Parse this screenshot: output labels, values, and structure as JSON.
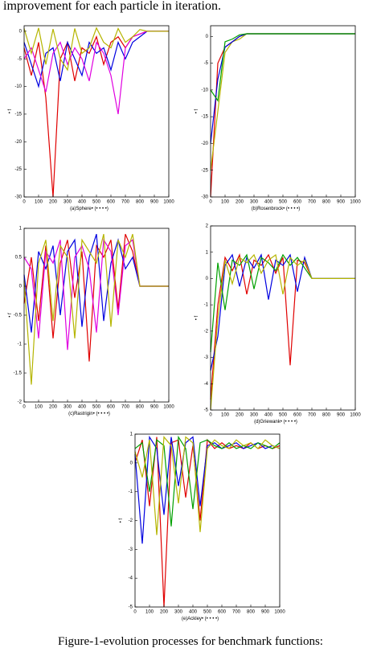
{
  "header_text": "improvement for each particle in iteration.",
  "caption": "Figure-1-evolution processes for benchmark functions:",
  "chart_data": [
    {
      "type": "line",
      "xlabel": "(a)Sphere• (• • • •)",
      "ylabel": "• f",
      "x": [
        0,
        50,
        100,
        150,
        200,
        250,
        300,
        350,
        400,
        450,
        500,
        550,
        600,
        650,
        700,
        750,
        800,
        850,
        900,
        950,
        1000
      ],
      "xlim": [
        0,
        1000
      ],
      "ylim": [
        -30,
        1
      ],
      "xticks": [
        0,
        100,
        200,
        300,
        400,
        500,
        600,
        700,
        800,
        900,
        1000
      ],
      "yticks": [
        0,
        -5,
        -10,
        -15,
        -20,
        -25,
        -30
      ],
      "series": [
        {
          "color": "#e00000",
          "values": [
            -3,
            -8,
            -2,
            -12,
            -30,
            -5,
            -2,
            -9,
            -3,
            -4,
            -1,
            -6,
            -2,
            -1,
            -3,
            -1,
            -0.5,
            0,
            0,
            0,
            0
          ]
        },
        {
          "color": "#0000e0",
          "values": [
            -2,
            -6,
            -10,
            -4,
            -3,
            -9,
            -2,
            -5,
            -8,
            -2,
            -4,
            -3,
            -7,
            -2,
            -5,
            -2,
            -1,
            0,
            0,
            0,
            0
          ]
        },
        {
          "color": "#e000e0",
          "values": [
            -5,
            -3,
            -7,
            -11,
            -4,
            -2,
            -6,
            -3,
            -5,
            -9,
            -2,
            -4,
            -8,
            -15,
            -3,
            -1,
            -0.5,
            0,
            0,
            0,
            0
          ]
        },
        {
          "color": "#b5b500",
          "values": [
            0.5,
            -4,
            0.6,
            -6,
            0.4,
            -5,
            -7,
            0.5,
            -4,
            -3,
            0.6,
            -2,
            -3,
            0.5,
            -2,
            -1,
            0.3,
            0,
            0,
            0,
            0
          ]
        }
      ]
    },
    {
      "type": "line",
      "xlabel": "(b)Rosenbrock• (• • • •)",
      "ylabel": "• f",
      "x": [
        0,
        50,
        100,
        150,
        200,
        250,
        300,
        350,
        400,
        450,
        500,
        550,
        600,
        650,
        700,
        750,
        800,
        850,
        900,
        950,
        1000
      ],
      "xlim": [
        0,
        1000
      ],
      "ylim": [
        -30,
        2
      ],
      "xticks": [
        0,
        100,
        200,
        300,
        400,
        500,
        600,
        700,
        800,
        900,
        1000
      ],
      "yticks": [
        0,
        -5,
        -10,
        -15,
        -20,
        -25,
        -30
      ],
      "series": [
        {
          "color": "#e00000",
          "values": [
            -30,
            -5,
            -2,
            -1,
            0,
            0.5,
            0.5,
            0.5,
            0.5,
            0.5,
            0.5,
            0.5,
            0.5,
            0.5,
            0.5,
            0.5,
            0.5,
            0.5,
            0.5,
            0.5,
            0.5
          ]
        },
        {
          "color": "#b5b500",
          "values": [
            -25,
            -14,
            -3,
            -1,
            -0.5,
            0.5,
            0.5,
            0.5,
            0.5,
            0.5,
            0.5,
            0.5,
            0.5,
            0.5,
            0.5,
            0.5,
            0.5,
            0.5,
            0.5,
            0.5,
            0.5
          ]
        },
        {
          "color": "#0000e0",
          "values": [
            -20,
            -8,
            -2,
            -1,
            0,
            0.5,
            0.5,
            0.5,
            0.5,
            0.5,
            0.5,
            0.5,
            0.5,
            0.5,
            0.5,
            0.5,
            0.5,
            0.5,
            0.5,
            0.5,
            0.5
          ]
        },
        {
          "color": "#00a000",
          "values": [
            -10,
            -12,
            -1,
            -0.5,
            0.3,
            0.5,
            0.5,
            0.5,
            0.5,
            0.5,
            0.5,
            0.5,
            0.5,
            0.5,
            0.5,
            0.5,
            0.5,
            0.5,
            0.5,
            0.5,
            0.5
          ]
        }
      ]
    },
    {
      "type": "line",
      "xlabel": "(c)Rastrigin• (• • • •)",
      "ylabel": "• f",
      "x": [
        0,
        50,
        100,
        150,
        200,
        250,
        300,
        350,
        400,
        450,
        500,
        550,
        600,
        650,
        700,
        750,
        800,
        850,
        900,
        950,
        1000
      ],
      "xlim": [
        0,
        1000
      ],
      "ylim": [
        -2,
        1
      ],
      "xticks": [
        0,
        100,
        200,
        300,
        400,
        500,
        600,
        700,
        800,
        900,
        1000
      ],
      "yticks": [
        1,
        0.5,
        0,
        -0.5,
        -1,
        -1.5,
        -2
      ],
      "series": [
        {
          "color": "#e00000",
          "values": [
            -0.3,
            0.5,
            -0.6,
            0.7,
            -0.9,
            0.4,
            0.8,
            -0.2,
            0.6,
            -1.3,
            0.7,
            0.5,
            0.8,
            -0.4,
            0.9,
            0.6,
            0,
            0,
            0,
            0,
            0
          ]
        },
        {
          "color": "#0000e0",
          "values": [
            0.2,
            -0.8,
            0.6,
            0.3,
            0.7,
            -0.5,
            0.6,
            0.8,
            -0.7,
            0.5,
            0.9,
            -0.6,
            0.4,
            0.8,
            0.3,
            0.5,
            0,
            0,
            0,
            0,
            0
          ]
        },
        {
          "color": "#e000e0",
          "values": [
            0.5,
            0.3,
            -0.9,
            0.6,
            0.4,
            0.8,
            -1.1,
            0.5,
            0.7,
            0.3,
            -0.8,
            0.8,
            0.6,
            -0.5,
            0.7,
            0.8,
            0,
            0,
            0,
            0,
            0
          ]
        },
        {
          "color": "#b5b500",
          "values": [
            0.1,
            -1.7,
            0.4,
            0.8,
            -0.6,
            0.7,
            0.5,
            -0.9,
            0.8,
            0.6,
            0.4,
            0.9,
            -0.7,
            0.8,
            0.5,
            0.9,
            0,
            0,
            0,
            0,
            0
          ]
        }
      ]
    },
    {
      "type": "line",
      "xlabel": "(d)Griewank• (• • • •)",
      "ylabel": "• f",
      "x": [
        0,
        50,
        100,
        150,
        200,
        250,
        300,
        350,
        400,
        450,
        500,
        550,
        600,
        650,
        700,
        750,
        800,
        850,
        900,
        950,
        1000
      ],
      "xlim": [
        0,
        1000
      ],
      "ylim": [
        -5,
        2
      ],
      "xticks": [
        0,
        100,
        200,
        300,
        400,
        500,
        600,
        700,
        800,
        900,
        1000
      ],
      "yticks": [
        2,
        1,
        0,
        -1,
        -2,
        -3,
        -4,
        -5
      ],
      "series": [
        {
          "color": "#e00000",
          "values": [
            -4.6,
            -1,
            0.8,
            0.3,
            0.9,
            -0.6,
            0.7,
            0.5,
            0.9,
            0.2,
            0.8,
            -3.3,
            0.7,
            0.6,
            0,
            0,
            0,
            0,
            0,
            0,
            0
          ]
        },
        {
          "color": "#0000e0",
          "values": [
            -3.5,
            -2.2,
            0.5,
            0.9,
            -0.3,
            0.8,
            0.4,
            0.9,
            -0.8,
            0.7,
            0.5,
            0.9,
            -0.5,
            0.8,
            0,
            0,
            0,
            0,
            0,
            0,
            0
          ]
        },
        {
          "color": "#00a000",
          "values": [
            -2.8,
            0.6,
            -1.2,
            0.7,
            0.5,
            0.9,
            -0.4,
            0.8,
            0.6,
            0.3,
            0.9,
            0.5,
            0.8,
            0.4,
            0,
            0,
            0,
            0,
            0,
            0,
            0
          ]
        },
        {
          "color": "#b5b500",
          "values": [
            -5,
            -1.5,
            0.7,
            -0.2,
            0.8,
            0.6,
            0.9,
            0.2,
            0.7,
            0.9,
            -0.6,
            0.8,
            0.5,
            0.7,
            0,
            0,
            0,
            0,
            0,
            0,
            0
          ]
        }
      ]
    },
    {
      "type": "line",
      "xlabel": "(e)Ackley• (• • • •)",
      "ylabel": "• f",
      "x": [
        0,
        50,
        100,
        150,
        200,
        250,
        300,
        350,
        400,
        450,
        500,
        550,
        600,
        650,
        700,
        750,
        800,
        850,
        900,
        950,
        1000
      ],
      "xlim": [
        0,
        1000
      ],
      "ylim": [
        -5,
        1
      ],
      "xticks": [
        0,
        100,
        200,
        300,
        400,
        500,
        600,
        700,
        800,
        900,
        1000
      ],
      "yticks": [
        1,
        0,
        -1,
        -2,
        -3,
        -4,
        -5
      ],
      "series": [
        {
          "color": "#e00000",
          "values": [
            0,
            0.8,
            -1.5,
            0.9,
            -5,
            0.7,
            0.8,
            -1.2,
            0.6,
            -2,
            0.8,
            0.5,
            0.7,
            0.5,
            0.6,
            0.5,
            0.7,
            0.5,
            0.6,
            0.5,
            0.6
          ]
        },
        {
          "color": "#0000e0",
          "values": [
            0.3,
            -2.8,
            0.9,
            0.5,
            -1.8,
            0.9,
            -0.8,
            0.7,
            0.9,
            -1.5,
            0.6,
            0.7,
            0.5,
            0.6,
            0.7,
            0.5,
            0.6,
            0.7,
            0.5,
            0.6,
            0.5
          ]
        },
        {
          "color": "#00a000",
          "values": [
            0.5,
            0.7,
            -1,
            0.8,
            0.6,
            -2.2,
            0.9,
            0.5,
            -1.6,
            0.7,
            0.8,
            0.6,
            0.5,
            0.7,
            0.5,
            0.6,
            0.5,
            0.7,
            0.6,
            0.5,
            0.7
          ]
        },
        {
          "color": "#b5b500",
          "values": [
            0.4,
            -0.5,
            0.8,
            -2.5,
            0.9,
            0.6,
            -1.4,
            0.9,
            0.7,
            -2.4,
            0.5,
            0.8,
            0.6,
            0.5,
            0.8,
            0.6,
            0.7,
            0.5,
            0.8,
            0.6,
            0.5
          ]
        }
      ]
    }
  ]
}
